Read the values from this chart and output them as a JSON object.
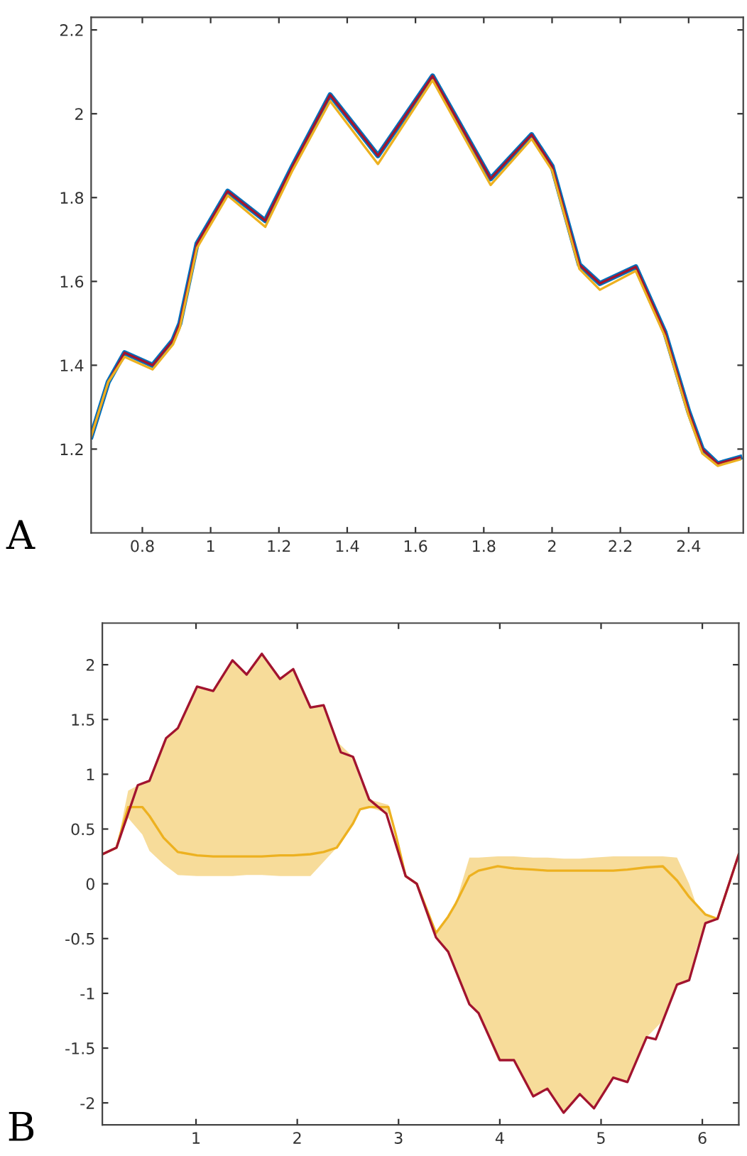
{
  "chart_data": [
    {
      "type": "line",
      "annotations": [
        "A"
      ],
      "xlim": [
        0.65,
        2.56
      ],
      "ylim": [
        1.0,
        2.23
      ],
      "xticks": [
        0.8,
        1,
        1.2,
        1.4,
        1.6,
        1.8,
        2,
        2.2,
        2.4
      ],
      "yticks": [
        1.2,
        1.4,
        1.6,
        1.8,
        2,
        2.2
      ],
      "grid": false,
      "legend": false,
      "x": [
        0.65,
        0.7,
        0.748,
        0.83,
        0.89,
        0.91,
        0.96,
        1.05,
        1.16,
        1.24,
        1.35,
        1.49,
        1.65,
        1.82,
        1.94,
        2.0,
        2.08,
        2.14,
        2.245,
        2.33,
        2.4,
        2.44,
        2.485,
        2.55
      ],
      "series": [
        {
          "color": "#0072bd",
          "values": [
            1.23,
            1.36,
            1.43,
            1.4,
            1.46,
            1.5,
            1.69,
            1.815,
            1.745,
            1.875,
            2.045,
            1.9,
            2.09,
            1.845,
            1.95,
            1.875,
            1.64,
            1.595,
            1.635,
            1.48,
            1.29,
            1.2,
            1.165,
            1.18
          ]
        },
        {
          "color": "#a2142f",
          "values": [
            1.23,
            1.36,
            1.43,
            1.4,
            1.46,
            1.5,
            1.69,
            1.815,
            1.745,
            1.875,
            2.045,
            1.9,
            2.09,
            1.845,
            1.95,
            1.875,
            1.64,
            1.595,
            1.635,
            1.48,
            1.29,
            1.2,
            1.165,
            1.18
          ]
        },
        {
          "color": "#edb120",
          "values": [
            1.23,
            1.36,
            1.42,
            1.39,
            1.45,
            1.49,
            1.68,
            1.805,
            1.73,
            1.865,
            2.03,
            1.88,
            2.08,
            1.83,
            1.94,
            1.865,
            1.63,
            1.58,
            1.625,
            1.47,
            1.28,
            1.19,
            1.16,
            1.175
          ]
        }
      ]
    },
    {
      "type": "line",
      "annotations": [
        "B"
      ],
      "xlim": [
        0.075,
        6.36
      ],
      "ylim": [
        -2.2,
        2.38
      ],
      "xticks": [
        1,
        2,
        3,
        4,
        5,
        6
      ],
      "yticks": [
        -2,
        -1.5,
        -1,
        -0.5,
        0,
        0.5,
        1,
        1.5,
        2
      ],
      "grid": false,
      "legend": false,
      "series": [
        {
          "color": "#edb120",
          "x": [
            0.075,
            0.215,
            0.33,
            0.47,
            0.54,
            0.68,
            0.82,
            1.01,
            1.17,
            1.36,
            1.5,
            1.65,
            1.83,
            1.96,
            2.13,
            2.26,
            2.39,
            2.55,
            2.62,
            2.71,
            2.9,
            2.97,
            3.07,
            3.18,
            3.37,
            3.49,
            3.56,
            3.7,
            3.79,
            3.98,
            4.14,
            4.33,
            4.47,
            4.63,
            4.79,
            4.93,
            5.12,
            5.26,
            5.45,
            5.61,
            5.75,
            5.87,
            5.94,
            6.03,
            6.15,
            6.36
          ],
          "values": [
            0.27,
            0.33,
            0.7,
            0.7,
            0.62,
            0.42,
            0.29,
            0.26,
            0.25,
            0.25,
            0.25,
            0.25,
            0.26,
            0.26,
            0.27,
            0.29,
            0.33,
            0.55,
            0.68,
            0.7,
            0.7,
            0.46,
            0.07,
            0.0,
            -0.45,
            -0.3,
            -0.19,
            0.07,
            0.12,
            0.16,
            0.14,
            0.13,
            0.12,
            0.12,
            0.12,
            0.12,
            0.12,
            0.13,
            0.15,
            0.16,
            0.03,
            -0.12,
            -0.19,
            -0.28,
            -0.32,
            0.27
          ],
          "upper": [
            0.27,
            0.33,
            0.85,
            0.92,
            0.94,
            1.3,
            1.42,
            1.8,
            1.76,
            2.04,
            1.91,
            2.1,
            1.87,
            1.96,
            1.61,
            1.63,
            1.3,
            1.16,
            0.95,
            0.77,
            0.72,
            0.46,
            0.07,
            0.0,
            -0.45,
            -0.3,
            -0.19,
            0.24,
            0.24,
            0.25,
            0.25,
            0.24,
            0.24,
            0.23,
            0.23,
            0.24,
            0.25,
            0.25,
            0.25,
            0.25,
            0.24,
            0.0,
            -0.19,
            -0.28,
            -0.32,
            0.27
          ],
          "lower": [
            0.27,
            0.33,
            0.6,
            0.45,
            0.3,
            0.18,
            0.08,
            0.07,
            0.07,
            0.07,
            0.08,
            0.08,
            0.07,
            0.07,
            0.07,
            0.2,
            0.33,
            0.55,
            0.68,
            0.7,
            0.64,
            0.46,
            0.07,
            0.0,
            -0.49,
            -0.62,
            -0.8,
            -1.1,
            -1.18,
            -1.61,
            -1.61,
            -1.94,
            -1.87,
            -2.09,
            -1.92,
            -2.05,
            -1.77,
            -1.81,
            -1.4,
            -1.25,
            -0.92,
            -0.88,
            -0.6,
            -0.36,
            -0.32,
            0.27
          ]
        },
        {
          "color": "#a2142f",
          "x": [
            0.075,
            0.215,
            0.425,
            0.54,
            0.705,
            0.82,
            1.01,
            1.17,
            1.36,
            1.5,
            1.65,
            1.83,
            1.96,
            2.13,
            2.26,
            2.43,
            2.55,
            2.71,
            2.88,
            3.07,
            3.18,
            3.37,
            3.49,
            3.7,
            3.79,
            4.0,
            4.14,
            4.33,
            4.47,
            4.63,
            4.79,
            4.93,
            5.12,
            5.26,
            5.45,
            5.54,
            5.75,
            5.87,
            6.03,
            6.15,
            6.36
          ],
          "values": [
            0.27,
            0.33,
            0.9,
            0.94,
            1.33,
            1.42,
            1.8,
            1.76,
            2.04,
            1.91,
            2.1,
            1.87,
            1.96,
            1.61,
            1.63,
            1.2,
            1.16,
            0.77,
            0.64,
            0.07,
            0.0,
            -0.49,
            -0.62,
            -1.1,
            -1.18,
            -1.61,
            -1.61,
            -1.94,
            -1.87,
            -2.09,
            -1.92,
            -2.05,
            -1.77,
            -1.81,
            -1.4,
            -1.42,
            -0.92,
            -0.88,
            -0.36,
            -0.32,
            0.27
          ]
        }
      ]
    }
  ]
}
